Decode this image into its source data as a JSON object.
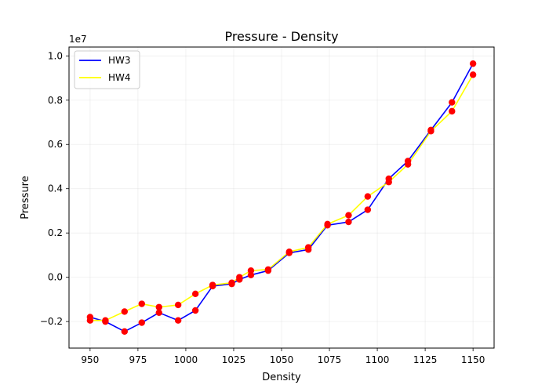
{
  "chart_data": {
    "type": "line",
    "title": "Pressure - Density",
    "xlabel": "Density",
    "ylabel": "Pressure",
    "y_offset_text": "1e7",
    "y_multiplier": 10000000,
    "xlim": [
      939,
      1161
    ],
    "ylim": [
      -0.32,
      1.04
    ],
    "xticks": [
      950,
      975,
      1000,
      1025,
      1050,
      1075,
      1100,
      1125,
      1150
    ],
    "yticks": [
      -0.2,
      0.0,
      0.2,
      0.4,
      0.6,
      0.8,
      1.0
    ],
    "ytick_labels": [
      "−0.2",
      "0.0",
      "0.2",
      "0.4",
      "0.6",
      "0.8",
      "1.0"
    ],
    "grid": true,
    "legend_position": "top-left",
    "series": [
      {
        "name": "HW3",
        "color": "#0000ff",
        "x": [
          950,
          958,
          968,
          977,
          986,
          996,
          1005,
          1014,
          1024,
          1028,
          1034,
          1043,
          1054,
          1064,
          1074,
          1085,
          1095,
          1106,
          1116,
          1128,
          1139,
          1150
        ],
        "y": [
          -0.18,
          -0.2,
          -0.245,
          -0.205,
          -0.16,
          -0.195,
          -0.15,
          -0.04,
          -0.03,
          -0.01,
          0.01,
          0.03,
          0.11,
          0.125,
          0.235,
          0.25,
          0.305,
          0.445,
          0.525,
          0.665,
          0.79,
          0.965
        ]
      },
      {
        "name": "HW4",
        "color": "#ffff00",
        "x": [
          950,
          958,
          968,
          977,
          986,
          996,
          1005,
          1014,
          1024,
          1028,
          1034,
          1043,
          1054,
          1064,
          1074,
          1085,
          1095,
          1106,
          1116,
          1128,
          1139,
          1150
        ],
        "y": [
          -0.195,
          -0.195,
          -0.155,
          -0.12,
          -0.135,
          -0.125,
          -0.075,
          -0.035,
          -0.025,
          0.0,
          0.03,
          0.035,
          0.115,
          0.135,
          0.24,
          0.28,
          0.365,
          0.43,
          0.51,
          0.66,
          0.75,
          0.915
        ]
      }
    ],
    "marker_color": "#ff0000"
  }
}
